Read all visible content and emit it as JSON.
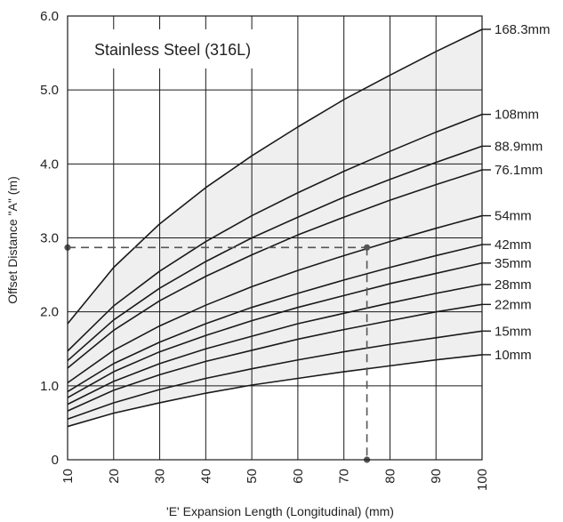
{
  "chart_data": {
    "type": "line",
    "title": "Stainless Steel (316L)",
    "xlabel": "'E' Expansion Length (Longitudinal) (mm)",
    "ylabel": "Offset Distance \"A\" (m)",
    "xlim": [
      10,
      100
    ],
    "ylim": [
      0,
      6.0
    ],
    "xticks": [
      "10",
      "20",
      "30",
      "40",
      "50",
      "60",
      "70",
      "80",
      "90",
      "100"
    ],
    "yticks": [
      "0",
      "1.0",
      "2.0",
      "3.0",
      "4.0",
      "5.0",
      "6.0"
    ],
    "x": [
      10,
      20,
      30,
      40,
      50,
      60,
      70,
      80,
      90,
      100
    ],
    "grid": true,
    "band_fill": "#efefef",
    "line_color": "#1a1a1a",
    "series": [
      {
        "name": "10mm",
        "values": [
          0.45,
          0.63,
          0.77,
          0.9,
          1.01,
          1.1,
          1.19,
          1.27,
          1.35,
          1.42
        ]
      },
      {
        "name": "15mm",
        "values": [
          0.55,
          0.77,
          0.95,
          1.1,
          1.23,
          1.35,
          1.46,
          1.56,
          1.65,
          1.74
        ]
      },
      {
        "name": "22mm",
        "values": [
          0.66,
          0.94,
          1.15,
          1.33,
          1.48,
          1.63,
          1.76,
          1.88,
          2.0,
          2.1
        ]
      },
      {
        "name": "28mm",
        "values": [
          0.75,
          1.06,
          1.3,
          1.5,
          1.67,
          1.84,
          1.98,
          2.12,
          2.25,
          2.37
        ]
      },
      {
        "name": "35mm",
        "values": [
          0.84,
          1.19,
          1.46,
          1.68,
          1.88,
          2.06,
          2.22,
          2.38,
          2.52,
          2.66
        ]
      },
      {
        "name": "42mm",
        "values": [
          0.92,
          1.3,
          1.59,
          1.84,
          2.06,
          2.25,
          2.43,
          2.6,
          2.76,
          2.91
        ]
      },
      {
        "name": "54mm",
        "values": [
          1.04,
          1.48,
          1.81,
          2.09,
          2.34,
          2.56,
          2.76,
          2.95,
          3.13,
          3.3
        ]
      },
      {
        "name": "76.1mm",
        "values": [
          1.24,
          1.75,
          2.15,
          2.48,
          2.77,
          3.04,
          3.28,
          3.51,
          3.72,
          3.92
        ]
      },
      {
        "name": "88.9mm",
        "values": [
          1.34,
          1.89,
          2.32,
          2.68,
          3.0,
          3.28,
          3.55,
          3.79,
          4.02,
          4.24
        ]
      },
      {
        "name": "108mm",
        "values": [
          1.47,
          2.08,
          2.55,
          2.95,
          3.3,
          3.61,
          3.9,
          4.17,
          4.43,
          4.67
        ]
      },
      {
        "name": "168.3mm",
        "values": [
          1.84,
          2.6,
          3.19,
          3.68,
          4.11,
          4.5,
          4.87,
          5.2,
          5.52,
          5.82
        ]
      }
    ],
    "example_point": {
      "x": 75,
      "y": 2.87
    }
  }
}
